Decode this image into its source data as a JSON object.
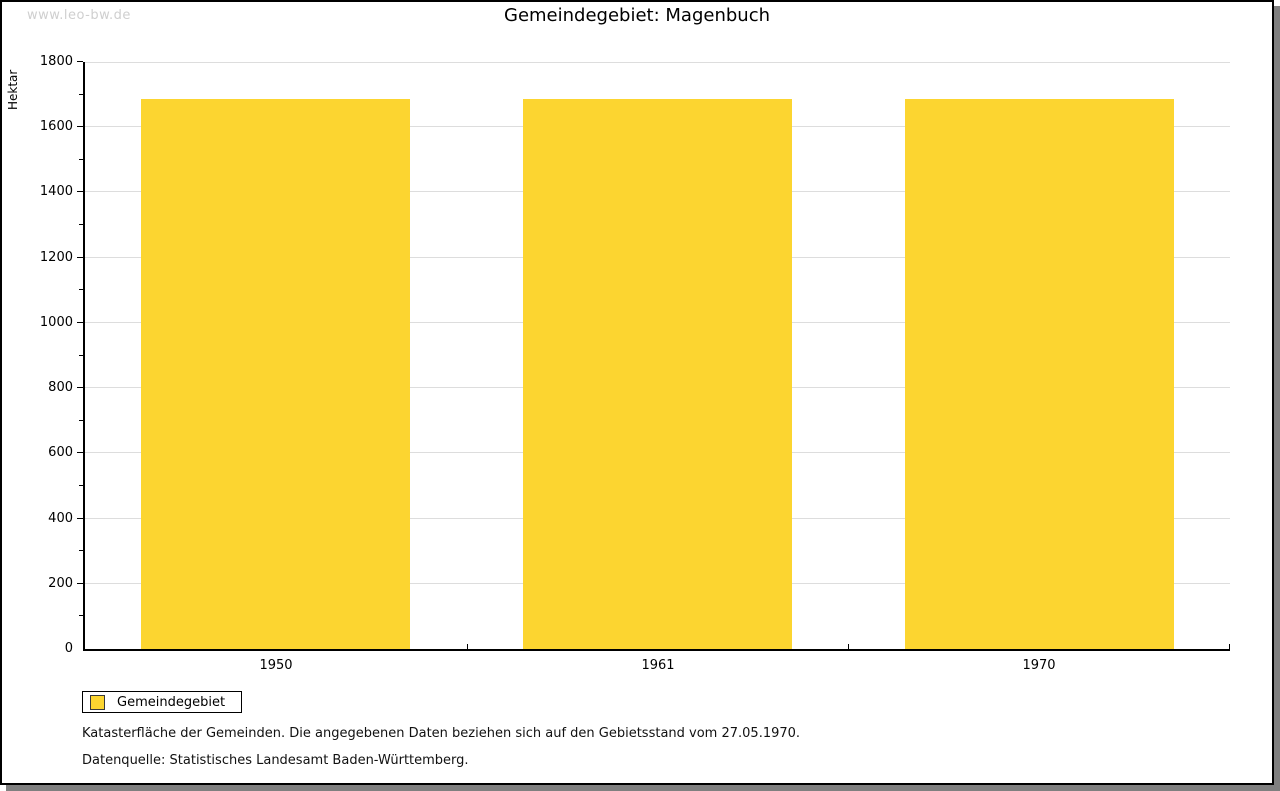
{
  "watermark": "www.leo-bw.de",
  "chart_data": {
    "type": "bar",
    "title": "Gemeindegebiet: Magenbuch",
    "categories": [
      "1950",
      "1961",
      "1970"
    ],
    "series": [
      {
        "name": "Gemeindegebiet",
        "values": [
          1688,
          1688,
          1688
        ]
      }
    ],
    "xlabel": "",
    "ylabel": "Hektar",
    "ylim": [
      0,
      1800
    ],
    "y_major_tick": 200,
    "y_minor_tick": 100,
    "grid": true,
    "legend_position": "bottom-left"
  },
  "legend": {
    "label": "Gemeindegebiet"
  },
  "footer": {
    "line1": "Katasterfläche der Gemeinden. Die angegebenen Daten beziehen sich auf den Gebietsstand vom 27.05.1970.",
    "line2": "Datenquelle: Statistisches Landesamt Baden-Württemberg."
  },
  "colors": {
    "bar": "#FCD530",
    "grid": "#DDDDDD",
    "axis": "#000000",
    "watermark": "#CFCFCF",
    "shadow": "#7F7F7F",
    "background": "#FFFFFF"
  }
}
